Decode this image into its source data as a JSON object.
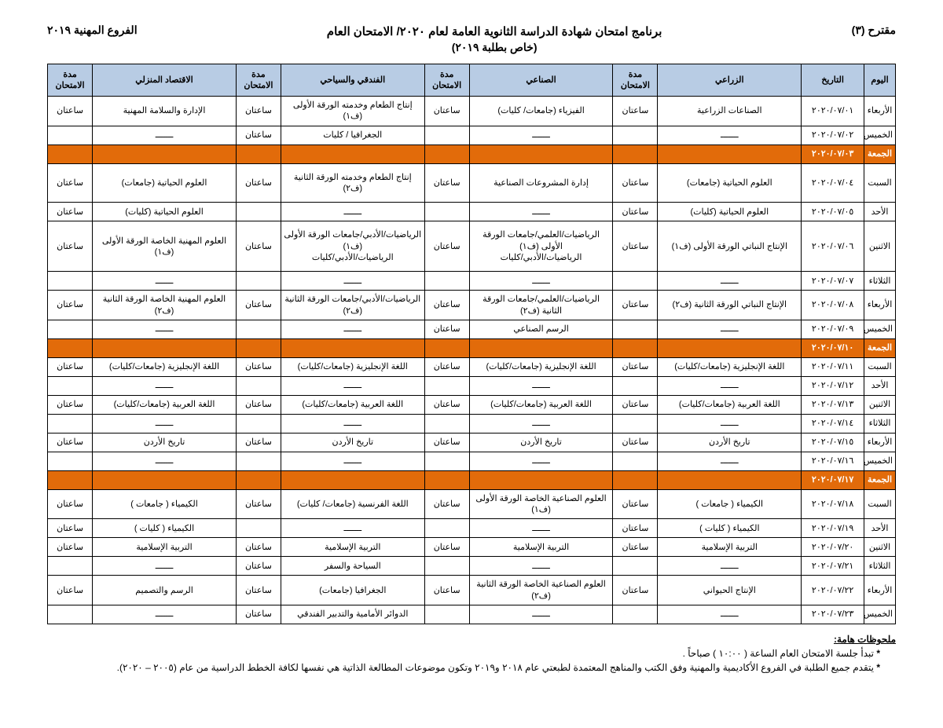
{
  "header": {
    "right": "مقترح (٣)",
    "left": "الفروع المهنية ٢٠١٩",
    "title_line1": "برنامج امتحان شهادة الدراسة الثانوية العامة لعام ٢٠٢٠/ الامتحان العام",
    "title_line2": "(خاص بطلبة ٢٠١٩)"
  },
  "columns": {
    "day": "اليوم",
    "date": "التاريخ",
    "track1": "الزراعي",
    "dur1": "مدة الامتحان",
    "track2": "الصناعي",
    "dur2": "مدة الامتحان",
    "track3": "الفندقي والسياحي",
    "dur3": "مدة الامتحان",
    "track4": "الاقتصاد المنزلي",
    "dur4": "مدة الامتحان"
  },
  "dash": "ـــــــ",
  "dur": "ساعتان",
  "rows": [
    {
      "day": "الأربعاء",
      "date": "٢٠٢٠/٠٧/٠١",
      "s1": "الصناعات الزراعية",
      "d1": "ساعتان",
      "s2": "الفيزياء (جامعات/ كليات)",
      "d2": "ساعتان",
      "s3": "إنتاج الطعام وخدمته الورقة الأولى (ف١)",
      "d3": "ساعتان",
      "s4": "الإدارة والسلامة المهنية",
      "d4": "ساعتان"
    },
    {
      "day": "الخميس",
      "date": "٢٠٢٠/٠٧/٠٢",
      "s1": "ـــــــ",
      "d1": "",
      "s2": "ـــــــ",
      "d2": "",
      "s3": "الجغرافيا / كليات",
      "d3": "ساعتان",
      "s4": "ـــــــ",
      "d4": ""
    },
    {
      "type": "orange",
      "day": "الجمعة",
      "date": "٢٠٢٠/٠٧/٠٣",
      "s1": "",
      "d1": "",
      "s2": "",
      "d2": "",
      "s3": "",
      "d3": "",
      "s4": "",
      "d4": ""
    },
    {
      "type": "tall",
      "day": "السبت",
      "date": "٢٠٢٠/٠٧/٠٤",
      "s1": "العلوم الحياتية (جامعات)",
      "d1": "ساعتان",
      "s2": "إدارة المشروعات الصناعية",
      "d2": "ساعتان",
      "s3": "إنتاج الطعام وخدمته الورقة الثانية (ف٢)",
      "d3": "ساعتان",
      "s4": "العلوم الحياتية (جامعات)",
      "d4": "ساعتان"
    },
    {
      "day": "الأحد",
      "date": "٢٠٢٠/٠٧/٠٥",
      "s1": "العلوم الحياتية (كليات)",
      "d1": "ساعتان",
      "s2": "ـــــــ",
      "d2": "",
      "s3": "ـــــــ",
      "d3": "",
      "s4": "العلوم الحياتية (كليات)",
      "d4": "ساعتان"
    },
    {
      "type": "tall",
      "day": "الاثنين",
      "date": "٢٠٢٠/٠٧/٠٦",
      "s1": "الإنتاج النباتي الورقة الأولى (ف١)",
      "d1": "ساعتان",
      "s2": "الرياضيات/العلمي/جامعات الورقة الأولى (ف١)\nالرياضيات/الأدبي/كليات",
      "d2": "ساعتان",
      "s3": "الرياضيات/الأدبي/جامعات الورقة الأولى (ف١)\nالرياضيات/الأدبي/كليات",
      "d3": "ساعتان",
      "s4": "العلوم المهنية الخاصة الورقة الأولى (ف١)",
      "d4": "ساعتان"
    },
    {
      "day": "الثلاثاء",
      "date": "٢٠٢٠/٠٧/٠٧",
      "s1": "ـــــــ",
      "d1": "",
      "s2": "ـــــــ",
      "d2": "",
      "s3": "ـــــــ",
      "d3": "",
      "s4": "ـــــــ",
      "d4": ""
    },
    {
      "day": "الأربعاء",
      "date": "٢٠٢٠/٠٧/٠٨",
      "s1": "الإنتاج النباتي الورقة الثانية (ف٢)",
      "d1": "ساعتان",
      "s2": "الرياضيات/العلمي/جامعات الورقة الثانية (ف٢)",
      "d2": "ساعتان",
      "s3": "الرياضيات/الأدبي/جامعات الورقة الثانية (ف٢)",
      "d3": "ساعتان",
      "s4": "العلوم المهنية الخاصة الورقة الثانية (ف٢)",
      "d4": "ساعتان"
    },
    {
      "day": "الخميس",
      "date": "٢٠٢٠/٠٧/٠٩",
      "s1": "ـــــــ",
      "d1": "",
      "s2": "الرسم الصناعي",
      "d2": "ساعتان",
      "s3": "ـــــــ",
      "d3": "",
      "s4": "ـــــــ",
      "d4": ""
    },
    {
      "type": "orange",
      "day": "الجمعة",
      "date": "٢٠٢٠/٠٧/١٠",
      "s1": "",
      "d1": "",
      "s2": "",
      "d2": "",
      "s3": "",
      "d3": "",
      "s4": "",
      "d4": ""
    },
    {
      "day": "السبت",
      "date": "٢٠٢٠/٠٧/١١",
      "s1": "اللغة الإنجليزية (جامعات/كليات)",
      "d1": "ساعتان",
      "s2": "اللغة الإنجليزية (جامعات/كليات)",
      "d2": "ساعتان",
      "s3": "اللغة الإنجليزية (جامعات/كليات)",
      "d3": "ساعتان",
      "s4": "اللغة الإنجليزية (جامعات/كليات)",
      "d4": "ساعتان"
    },
    {
      "day": "الأحد",
      "date": "٢٠٢٠/٠٧/١٢",
      "s1": "ـــــــ",
      "d1": "",
      "s2": "ـــــــ",
      "d2": "",
      "s3": "ـــــــ",
      "d3": "",
      "s4": "ـــــــ",
      "d4": ""
    },
    {
      "day": "الاثنين",
      "date": "٢٠٢٠/٠٧/١٣",
      "s1": "اللغة العربية (جامعات/كليات)",
      "d1": "ساعتان",
      "s2": "اللغة العربية (جامعات/كليات)",
      "d2": "ساعتان",
      "s3": "اللغة العربية (جامعات/كليات)",
      "d3": "ساعتان",
      "s4": "اللغة العربية (جامعات/كليات)",
      "d4": "ساعتان"
    },
    {
      "day": "الثلاثاء",
      "date": "٢٠٢٠/٠٧/١٤",
      "s1": "ـــــــ",
      "d1": "",
      "s2": "ـــــــ",
      "d2": "",
      "s3": "ـــــــ",
      "d3": "",
      "s4": "ـــــــ",
      "d4": ""
    },
    {
      "day": "الأربعاء",
      "date": "٢٠٢٠/٠٧/١٥",
      "s1": "تاريخ الأردن",
      "d1": "ساعتان",
      "s2": "تاريخ الأردن",
      "d2": "ساعتان",
      "s3": "تاريخ الأردن",
      "d3": "ساعتان",
      "s4": "تاريخ الأردن",
      "d4": "ساعتان"
    },
    {
      "day": "الخميس",
      "date": "٢٠٢٠/٠٧/١٦",
      "s1": "ـــــــ",
      "d1": "",
      "s2": "ـــــــ",
      "d2": "",
      "s3": "ـــــــ",
      "d3": "",
      "s4": "ـــــــ",
      "d4": ""
    },
    {
      "type": "orange",
      "day": "الجمعة",
      "date": "٢٠٢٠/٠٧/١٧",
      "s1": "",
      "d1": "",
      "s2": "",
      "d2": "",
      "s3": "",
      "d3": "",
      "s4": "",
      "d4": ""
    },
    {
      "day": "السبت",
      "date": "٢٠٢٠/٠٧/١٨",
      "s1": "الكيمياء ( جامعات )",
      "d1": "ساعتان",
      "s2": "العلوم الصناعية الخاصة الورقة الأولى (ف١)",
      "d2": "ساعتان",
      "s3": "اللغة الفرنسية (جامعات/ كليات)",
      "d3": "ساعتان",
      "s4": "الكيمياء ( جامعات )",
      "d4": "ساعتان"
    },
    {
      "day": "الأحد",
      "date": "٢٠٢٠/٠٧/١٩",
      "s1": "الكيمياء ( كليات )",
      "d1": "ساعتان",
      "s2": "ـــــــ",
      "d2": "",
      "s3": "ـــــــ",
      "d3": "",
      "s4": "الكيمياء ( كليات )",
      "d4": "ساعتان"
    },
    {
      "day": "الاثنين",
      "date": "٢٠٢٠/٠٧/٢٠",
      "s1": "التربية الإسلامية",
      "d1": "ساعتان",
      "s2": "التربية الإسلامية",
      "d2": "ساعتان",
      "s3": "التربية الإسلامية",
      "d3": "ساعتان",
      "s4": "التربية الإسلامية",
      "d4": "ساعتان"
    },
    {
      "day": "الثلاثاء",
      "date": "٢٠٢٠/٠٧/٢١",
      "s1": "ـــــــ",
      "d1": "",
      "s2": "ـــــــ",
      "d2": "",
      "s3": "السياحة والسفر",
      "d3": "ساعتان",
      "s4": "ـــــــ",
      "d4": ""
    },
    {
      "day": "الأربعاء",
      "date": "٢٠٢٠/٠٧/٢٢",
      "s1": "الإنتاج الحيواني",
      "d1": "ساعتان",
      "s2": "العلوم الصناعية الخاصة الورقة الثانية (ف٢)",
      "d2": "ساعتان",
      "s3": "الجغرافيا (جامعات)",
      "d3": "ساعتان",
      "s4": "الرسم والتصميم",
      "d4": "ساعتان"
    },
    {
      "day": "الخميس",
      "date": "٢٠٢٠/٠٧/٢٣",
      "s1": "ـــــــ",
      "d1": "",
      "s2": "ـــــــ",
      "d2": "",
      "s3": "الدوائر الأمامية والتدبير الفندقي",
      "d3": "ساعتان",
      "s4": "ـــــــ",
      "d4": ""
    }
  ],
  "notes": {
    "title": "ملحوظات هامة:",
    "items": [
      "تبدأ  جلسة الامتحان العام  الساعة ( ١٠:٠٠ ) صباحاً .",
      "يتقدم جميع الطلبة في الفروع الأكاديمية والمهنية وفق الكتب والمناهج  المعتمدة لطبعتي عام ٢٠١٨ و٢٠١٩ وتكون موضوعات المطالعة الذاتية هي نفسها لكافة الخطط الدراسية من عام (٢٠٠٥ – ٢٠٢٠)."
    ]
  },
  "style": {
    "header_bg": "#b8cce4",
    "orange_bg": "#e26b0a",
    "border_color": "#000000",
    "page_bg": "#ffffff"
  }
}
